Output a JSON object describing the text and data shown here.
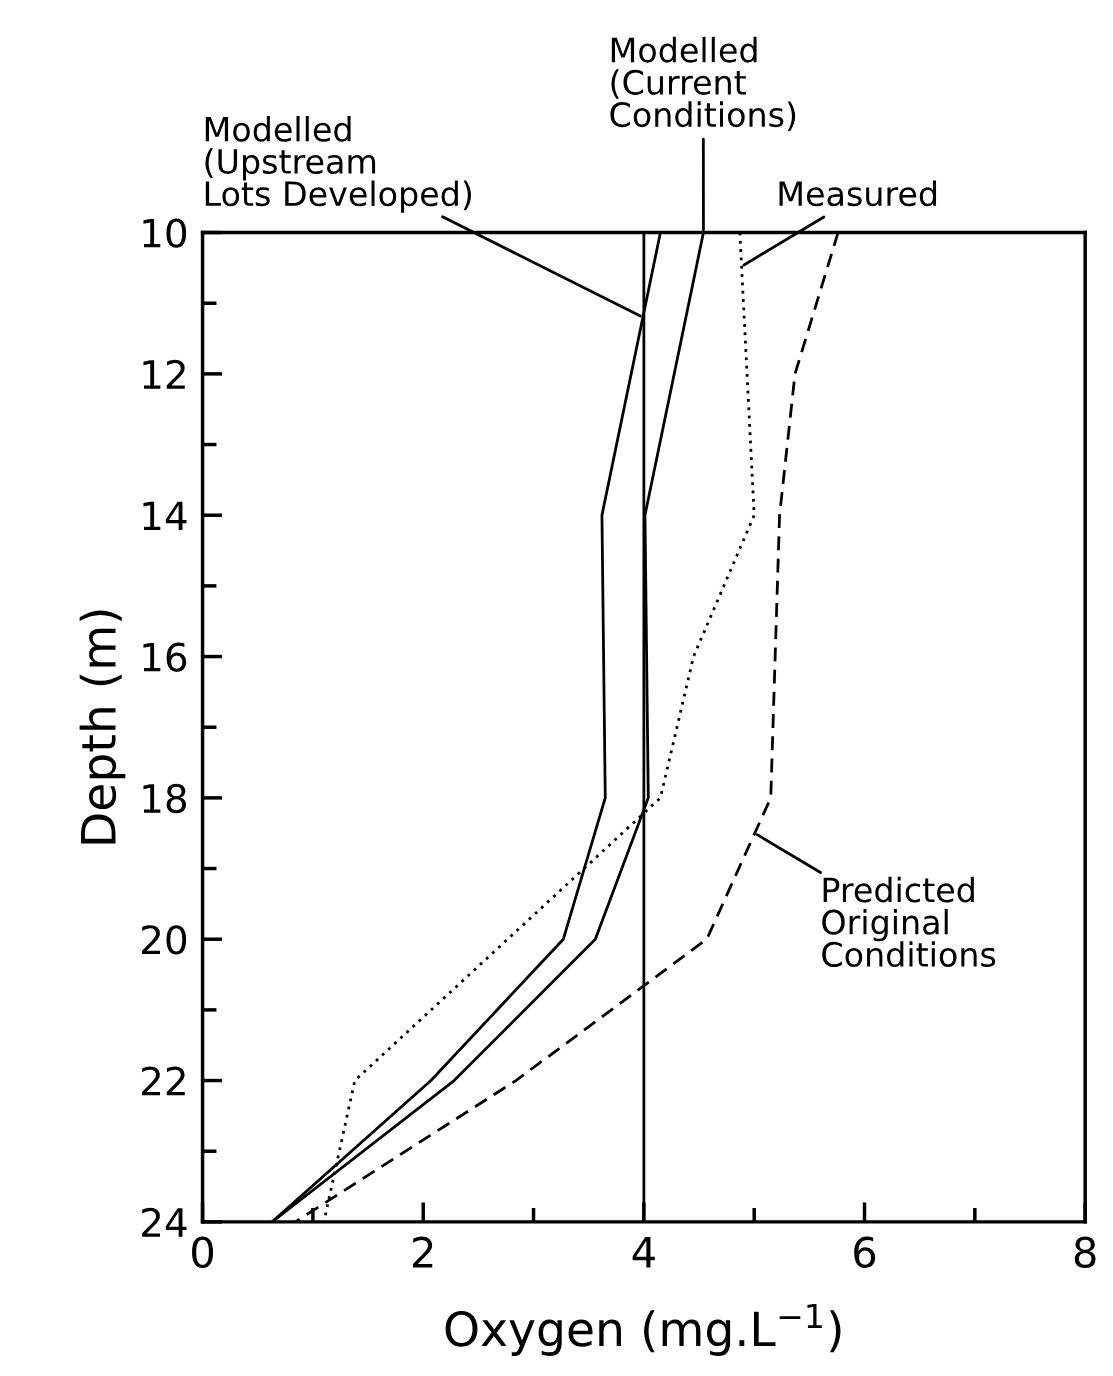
{
  "chart_data": {
    "type": "line",
    "xlabel": "Oxygen (mg.L$^{−1}$)",
    "ylabel": "Depth (m)",
    "orientation": "horizontal",
    "series": [
      {
        "name": "Modelled\n(Upstream\nLots Developed)",
        "color": "#000000",
        "line_style": "solid",
        "x": [
          10,
          14,
          18,
          20,
          22,
          24
        ],
        "values": [
          4.15,
          3.62,
          3.65,
          3.27,
          2.07,
          0.63
        ]
      },
      {
        "name": "Modelled\n(Current\nConditions)",
        "color": "#000000",
        "line_style": "solid",
        "x": [
          10,
          14,
          18,
          20,
          22,
          24
        ],
        "values": [
          4.54,
          4.01,
          4.04,
          3.56,
          2.28,
          0.63
        ]
      },
      {
        "name": "Measured",
        "color": "#000000",
        "line_style": "dotted",
        "x": [
          10,
          14,
          16,
          18,
          22,
          24
        ],
        "values": [
          4.87,
          5.0,
          4.45,
          4.15,
          1.38,
          1.1
        ]
      },
      {
        "name": "Predicted\nOriginal\nConditions",
        "color": "#000000",
        "line_style": "dashed",
        "x": [
          10,
          12,
          14,
          18,
          20,
          22,
          24
        ],
        "values": [
          5.76,
          5.37,
          5.23,
          5.15,
          4.57,
          2.84,
          0.84
        ]
      }
    ],
    "ref_lines": [
      {
        "axis": "x",
        "value": 4,
        "color": "#000000",
        "line_style": "solid"
      }
    ],
    "xlim": [
      0,
      8
    ],
    "xticks": [
      0,
      {
        "value": 1,
        "label": null
      },
      2,
      {
        "value": 3,
        "label": null
      },
      4,
      {
        "value": 5,
        "label": null
      },
      6,
      {
        "value": 7,
        "label": null
      },
      8
    ],
    "ylim": [
      24,
      10
    ],
    "yticks": [
      10,
      {
        "value": 11,
        "label": null
      },
      12,
      {
        "value": 13,
        "label": null
      },
      14,
      {
        "value": 15,
        "label": null
      },
      16,
      {
        "value": 17,
        "label": null
      },
      18,
      {
        "value": 19,
        "label": null
      },
      20,
      {
        "value": 21,
        "label": null
      },
      22,
      {
        "value": 23,
        "label": null
      },
      24
    ],
    "grid": false,
    "legend": false,
    "marker": "none"
  }
}
